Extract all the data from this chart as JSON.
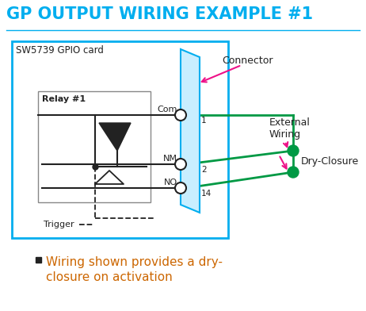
{
  "title": "GP OUTPUT WIRING EXAMPLE #1",
  "title_color": "#00AEEF",
  "title_fontsize": 15,
  "bg_color": "#FFFFFF",
  "cyan_color": "#00AEEF",
  "magenta_color": "#EE1188",
  "green_color": "#009944",
  "dark_color": "#222222",
  "gray_color": "#888888",
  "orange_color": "#CC6600",
  "gpio_box_label": "SW5739 GPIO card",
  "relay_box_label": "Relay #1",
  "connector_label": "Connector",
  "external_wiring_label1": "External",
  "external_wiring_label2": "Wiring",
  "dry_closure_label": "Dry-Closure",
  "trigger_label": "Trigger",
  "com_label": "Com",
  "nm_label": "NM",
  "no_label": "NO",
  "pin1_label": "1",
  "pin2_label": "2",
  "pin14_label": "14",
  "bullet_text1": "Wiring shown provides a dry-",
  "bullet_text2": "closure on activation"
}
